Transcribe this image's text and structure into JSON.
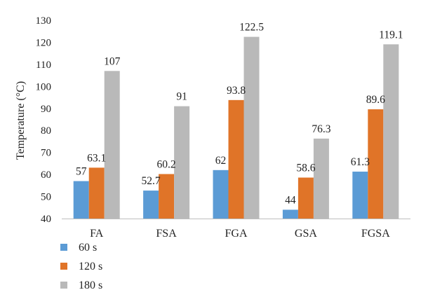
{
  "chart_data": {
    "type": "bar",
    "title": "",
    "xlabel": "",
    "ylabel": "Temperature (°C)",
    "ylim": [
      40,
      130
    ],
    "ytick_step": 10,
    "grid": false,
    "legend_position": "bottom-left",
    "categories": [
      "FA",
      "FSA",
      "FGA",
      "GSA",
      "FGSA"
    ],
    "series": [
      {
        "name": "60 s",
        "color": "#5b9bd5",
        "values": [
          57,
          52.7,
          62,
          44,
          61.3
        ],
        "labels": [
          "57",
          "52.7",
          "62",
          "44",
          "61.3"
        ]
      },
      {
        "name": "120 s",
        "color": "#e07428",
        "values": [
          63.1,
          60.2,
          93.8,
          58.6,
          89.6
        ],
        "labels": [
          "63.1",
          "60.2",
          "93.8",
          "58.6",
          "89.6"
        ]
      },
      {
        "name": "180 s",
        "color": "#b9b9b9",
        "values": [
          107,
          91,
          122.5,
          76.3,
          119.1
        ],
        "labels": [
          "107",
          "91",
          "122.5",
          "76.3",
          "119.1"
        ]
      }
    ]
  }
}
